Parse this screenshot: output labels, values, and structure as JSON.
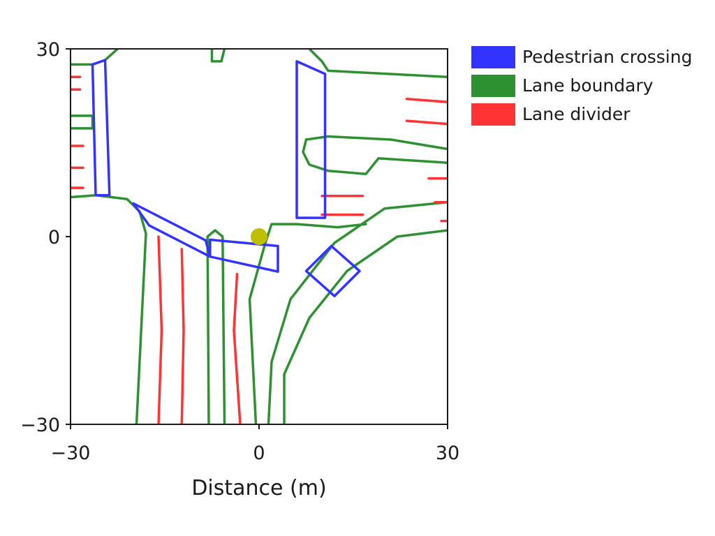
{
  "chart_data": {
    "type": "map",
    "title": "",
    "xlabel": "Distance (m)",
    "ylabel": "",
    "xlim": [
      -30,
      30
    ],
    "ylim": [
      -30,
      30
    ],
    "xticks": [
      "−30",
      "0",
      "30"
    ],
    "yticks": [
      "30",
      "0",
      "−30"
    ],
    "grid": false,
    "legend_position": "outside-right",
    "legend": [
      {
        "label": "Pedestrian crossing",
        "color": "#3333ff"
      },
      {
        "label": "Lane boundary",
        "color": "#2e9131"
      },
      {
        "label": "Lane divider",
        "color": "#ff3333"
      }
    ],
    "ego_position": {
      "x": 0,
      "y": 0,
      "color": "#bfbf00"
    },
    "series": [
      {
        "class": "Pedestrian crossing",
        "color": "#3333ff",
        "polylines": [
          [
            [
              -26.5,
              27.5
            ],
            [
              -24.5,
              28.2
            ],
            [
              -23.8,
              6.6
            ],
            [
              -26,
              6.6
            ],
            [
              -26.5,
              27.5
            ]
          ],
          [
            [
              6,
              28
            ],
            [
              10.5,
              26
            ],
            [
              10.5,
              3
            ],
            [
              6,
              3
            ],
            [
              6,
              28
            ]
          ],
          [
            [
              -20,
              5.3
            ],
            [
              -8.5,
              -0.6
            ],
            [
              -7.8,
              -3.2
            ],
            [
              -17.5,
              1.8
            ],
            [
              -20,
              5.3
            ]
          ],
          [
            [
              -7.8,
              -0.5
            ],
            [
              3,
              -1.5
            ],
            [
              3,
              -5.6
            ],
            [
              -7.8,
              -3.2
            ],
            [
              -7.8,
              -0.5
            ]
          ],
          [
            [
              7.5,
              -5.5
            ],
            [
              11.5,
              -1.5
            ],
            [
              16,
              -5.5
            ],
            [
              12,
              -9.5
            ],
            [
              7.5,
              -5.5
            ]
          ]
        ]
      },
      {
        "class": "Lane boundary",
        "color": "#2e9131",
        "polylines": [
          [
            [
              -30,
              27.5
            ],
            [
              -26.5,
              27.5
            ],
            [
              -24.5,
              28.2
            ],
            [
              -22.5,
              30
            ]
          ],
          [
            [
              -30,
              19.3
            ],
            [
              -26.5,
              19.3
            ],
            [
              -26.5,
              17.3
            ],
            [
              -30,
              17.3
            ]
          ],
          [
            [
              -30,
              6.3
            ],
            [
              -26,
              6.6
            ],
            [
              -21,
              6
            ],
            [
              -19,
              4
            ],
            [
              -18,
              0.5
            ],
            [
              -19.5,
              -30
            ]
          ],
          [
            [
              -8,
              -30
            ],
            [
              -8.2,
              0
            ],
            [
              -7,
              1
            ],
            [
              -5.8,
              0
            ],
            [
              -5.5,
              -30
            ]
          ],
          [
            [
              -0.5,
              -30
            ],
            [
              -1.5,
              -10
            ],
            [
              1,
              -1
            ],
            [
              2,
              2
            ],
            [
              6,
              2
            ],
            [
              12.5,
              1.5
            ],
            [
              17,
              2
            ]
          ],
          [
            [
              -7.5,
              30
            ],
            [
              -7.5,
              28
            ],
            [
              -6,
              28
            ],
            [
              -5.5,
              30
            ]
          ],
          [
            [
              8,
              30
            ],
            [
              10,
              28
            ],
            [
              11,
              26.5
            ],
            [
              30,
              25.5
            ]
          ],
          [
            [
              7.5,
              15.5
            ],
            [
              11,
              16
            ],
            [
              21,
              15.5
            ],
            [
              30,
              14
            ]
          ],
          [
            [
              30,
              11.8
            ],
            [
              19,
              12.5
            ],
            [
              17,
              10
            ],
            [
              11,
              10.5
            ],
            [
              8,
              11.5
            ],
            [
              7,
              13.5
            ],
            [
              7.5,
              15.5
            ]
          ],
          [
            [
              1.5,
              -30
            ],
            [
              2,
              -20
            ],
            [
              5,
              -10
            ],
            [
              12,
              -1
            ],
            [
              20,
              4.5
            ],
            [
              30,
              5.5
            ]
          ],
          [
            [
              4,
              -30
            ],
            [
              4,
              -22
            ],
            [
              8,
              -13
            ],
            [
              14,
              -5.5
            ],
            [
              22,
              0
            ],
            [
              30,
              1
            ]
          ]
        ]
      },
      {
        "class": "Lane divider",
        "color": "#ff3333",
        "polylines": [
          [
            [
              -30,
              25.5
            ],
            [
              -28.5,
              25.5
            ]
          ],
          [
            [
              -30,
              23.5
            ],
            [
              -28.5,
              23.5
            ]
          ],
          [
            [
              -30,
              14.5
            ],
            [
              -28,
              14.5
            ]
          ],
          [
            [
              -30,
              11
            ],
            [
              -28,
              11
            ]
          ],
          [
            [
              -30,
              7.8
            ],
            [
              -28,
              7.8
            ]
          ],
          [
            [
              -16,
              0
            ],
            [
              -15.5,
              -15
            ],
            [
              -16,
              -30
            ]
          ],
          [
            [
              -12.3,
              -2
            ],
            [
              -12,
              -15
            ],
            [
              -12.3,
              -30
            ]
          ],
          [
            [
              -3.5,
              -6
            ],
            [
              -4,
              -15
            ],
            [
              -3,
              -30
            ]
          ],
          [
            [
              23.5,
              22
            ],
            [
              30,
              21.5
            ]
          ],
          [
            [
              23.5,
              18.5
            ],
            [
              30,
              18
            ]
          ],
          [
            [
              10,
              6.5
            ],
            [
              16.5,
              6.5
            ]
          ],
          [
            [
              10,
              3.5
            ],
            [
              16.5,
              3.5
            ]
          ],
          [
            [
              27,
              9.3
            ],
            [
              30,
              9.3
            ]
          ],
          [
            [
              28,
              5.5
            ],
            [
              30,
              5.5
            ]
          ],
          [
            [
              29,
              2.5
            ],
            [
              30,
              2.5
            ]
          ]
        ]
      }
    ]
  }
}
